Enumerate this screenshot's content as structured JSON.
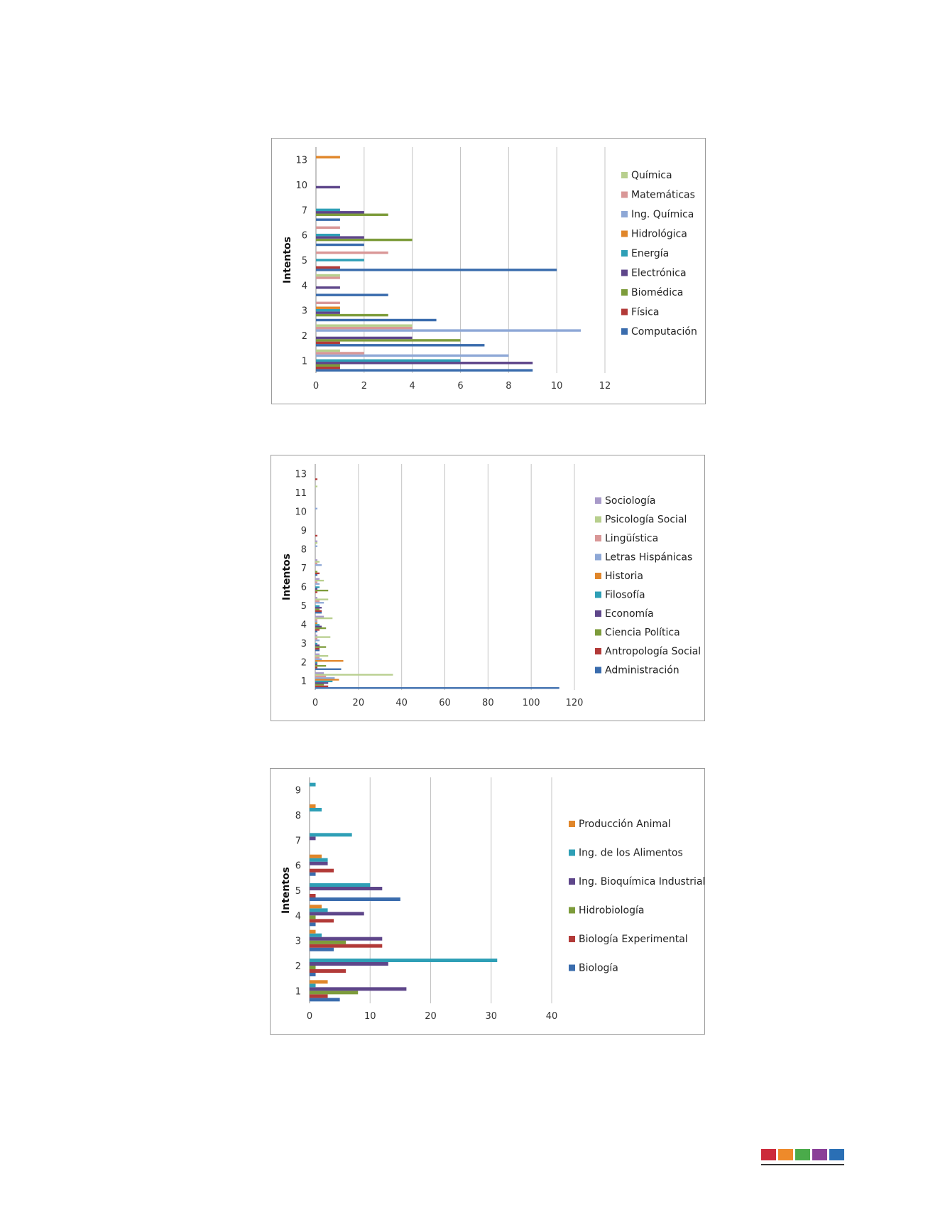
{
  "chart_data": [
    {
      "type": "bar",
      "orientation": "horizontal",
      "title": "",
      "xlabel": "",
      "ylabel": "Intentos",
      "categories": [
        "1",
        "2",
        "3",
        "4",
        "5",
        "6",
        "7",
        "10",
        "13"
      ],
      "xlim": [
        0,
        12
      ],
      "xticks": [
        0,
        2,
        4,
        6,
        8,
        10,
        12
      ],
      "grid": true,
      "legend_position": "right",
      "series": [
        {
          "name": "Computación",
          "color": "#3a6cad",
          "values": [
            9,
            7,
            5,
            3,
            10,
            2,
            1,
            null,
            null
          ]
        },
        {
          "name": "Física",
          "color": "#b23a38",
          "values": [
            1,
            1,
            null,
            null,
            1,
            null,
            null,
            null,
            null
          ]
        },
        {
          "name": "Biomédica",
          "color": "#7d9c3b",
          "values": [
            1,
            6,
            3,
            null,
            null,
            4,
            3,
            null,
            null
          ]
        },
        {
          "name": "Electrónica",
          "color": "#5e468a",
          "values": [
            9,
            4,
            1,
            1,
            null,
            2,
            2,
            1,
            null
          ]
        },
        {
          "name": "Energía",
          "color": "#2e9fb6",
          "values": [
            6,
            null,
            1,
            null,
            2,
            1,
            1,
            null,
            null
          ]
        },
        {
          "name": "Hidrológica",
          "color": "#e0862a",
          "values": [
            null,
            null,
            1,
            null,
            null,
            null,
            null,
            null,
            1
          ]
        },
        {
          "name": "Ing. Química",
          "color": "#8ea8d6",
          "values": [
            8,
            11,
            null,
            null,
            null,
            null,
            null,
            null,
            null
          ]
        },
        {
          "name": "Matemáticas",
          "color": "#d99797",
          "values": [
            2,
            4,
            1,
            1,
            3,
            1,
            null,
            null,
            null
          ]
        },
        {
          "name": "Química",
          "color": "#b8cf8e",
          "values": [
            1,
            4,
            null,
            1,
            null,
            null,
            null,
            null,
            null
          ]
        }
      ]
    },
    {
      "type": "bar",
      "orientation": "horizontal",
      "title": "",
      "xlabel": "",
      "ylabel": "Intentos",
      "categories": [
        "1",
        "2",
        "3",
        "4",
        "5",
        "6",
        "7",
        "8",
        "9",
        "10",
        "11",
        "13"
      ],
      "xlim": [
        0,
        120
      ],
      "xticks": [
        0,
        20,
        40,
        60,
        80,
        100,
        120
      ],
      "grid": true,
      "legend_position": "right",
      "series": [
        {
          "name": "Administración",
          "color": "#3a6cad",
          "values": [
            113,
            12,
            2,
            1,
            3,
            null,
            1,
            null,
            null,
            null,
            null,
            null
          ]
        },
        {
          "name": "Antropología Social",
          "color": "#b23a38",
          "values": [
            6,
            1,
            2,
            2,
            3,
            1,
            2,
            null,
            1,
            null,
            null,
            1
          ]
        },
        {
          "name": "Ciencia Política",
          "color": "#7d9c3b",
          "values": [
            4,
            5,
            5,
            5,
            2,
            6,
            1,
            null,
            null,
            null,
            null,
            null
          ]
        },
        {
          "name": "Economía",
          "color": "#5e468a",
          "values": [
            6,
            1,
            2,
            3,
            3,
            1,
            null,
            null,
            null,
            null,
            null,
            null
          ]
        },
        {
          "name": "Filosofía",
          "color": "#2e9fb6",
          "values": [
            8,
            1,
            1,
            2,
            2,
            2,
            null,
            null,
            null,
            null,
            null,
            null
          ]
        },
        {
          "name": "Historia",
          "color": "#e0862a",
          "values": [
            11,
            13,
            null,
            1,
            null,
            null,
            null,
            null,
            null,
            null,
            null,
            null
          ]
        },
        {
          "name": "Letras Hispánicas",
          "color": "#8ea8d6",
          "values": [
            9,
            3,
            2,
            1,
            4,
            2,
            3,
            1,
            null,
            1,
            null,
            null
          ]
        },
        {
          "name": "Lingüística",
          "color": "#d99797",
          "values": [
            5,
            2,
            1,
            1,
            2,
            1,
            1,
            null,
            null,
            null,
            null,
            null
          ]
        },
        {
          "name": "Psicología Social",
          "color": "#b8cf8e",
          "values": [
            36,
            6,
            7,
            8,
            6,
            4,
            2,
            1,
            null,
            null,
            1,
            null
          ]
        },
        {
          "name": "Sociología",
          "color": "#a89ac9",
          "values": [
            4,
            2,
            1,
            4,
            1,
            2,
            1,
            1,
            null,
            null,
            null,
            null
          ]
        }
      ]
    },
    {
      "type": "bar",
      "orientation": "horizontal",
      "title": "",
      "xlabel": "",
      "ylabel": "Intentos",
      "categories": [
        "1",
        "2",
        "3",
        "4",
        "5",
        "6",
        "7",
        "8",
        "9"
      ],
      "xlim": [
        0,
        40
      ],
      "xticks": [
        0,
        10,
        20,
        30,
        40
      ],
      "grid": true,
      "legend_position": "right",
      "series": [
        {
          "name": "Biología",
          "color": "#3a6cad",
          "values": [
            5,
            1,
            4,
            1,
            15,
            1,
            null,
            null,
            null
          ]
        },
        {
          "name": "Biología Experimental",
          "color": "#b23a38",
          "values": [
            3,
            6,
            12,
            4,
            1,
            4,
            null,
            null,
            null
          ]
        },
        {
          "name": "Hidrobiología",
          "color": "#7d9c3b",
          "values": [
            8,
            1,
            6,
            1,
            null,
            null,
            null,
            null,
            null
          ]
        },
        {
          "name": "Ing. Bioquímica Industrial",
          "color": "#5e468a",
          "values": [
            16,
            13,
            12,
            9,
            12,
            3,
            1,
            null,
            null
          ]
        },
        {
          "name": "Ing. de los Alimentos",
          "color": "#2e9fb6",
          "values": [
            1,
            31,
            2,
            3,
            10,
            3,
            7,
            2,
            1
          ]
        },
        {
          "name": "Producción Animal",
          "color": "#e0862a",
          "values": [
            3,
            null,
            1,
            2,
            null,
            2,
            null,
            1,
            null
          ]
        }
      ]
    }
  ],
  "footer_strip": {
    "colors": [
      "#cc2b3b",
      "#ee8a2a",
      "#4aab4a",
      "#8a3f98",
      "#2a6fb5"
    ]
  }
}
